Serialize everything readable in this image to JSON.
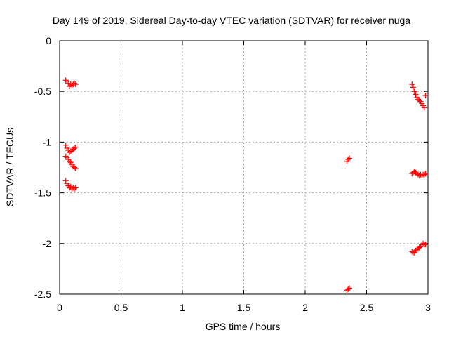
{
  "chart_data": {
    "type": "scatter",
    "title": "Day 149 of 2019, Sidereal Day-to-day VTEC variation (SDTVAR) for receiver nuga",
    "xlabel": "GPS time / hours",
    "ylabel": "SDTVAR / TECUs",
    "xlim": [
      0,
      3
    ],
    "ylim": [
      -2.5,
      0
    ],
    "xticks": [
      0,
      0.5,
      1,
      1.5,
      2,
      2.5,
      3
    ],
    "xtick_labels": [
      "0",
      "0.5",
      "1",
      "1.5",
      "2",
      "2.5",
      "3"
    ],
    "yticks": [
      0,
      -0.5,
      -1,
      -1.5,
      -2,
      -2.5
    ],
    "ytick_labels": [
      "0",
      "-0.5",
      "-1",
      "-1.5",
      "-2",
      "-2.5"
    ],
    "grid": true,
    "marker": "+",
    "color": "#ff0000",
    "series": [
      {
        "x": [
          0.05,
          0.06,
          0.07,
          0.08,
          0.09,
          0.1,
          0.11,
          0.12,
          0.13,
          0.05,
          0.06,
          0.07,
          0.08,
          0.09,
          0.1,
          0.11,
          0.12,
          0.13,
          0.05,
          0.06,
          0.07,
          0.08,
          0.09,
          0.1,
          0.11,
          0.12,
          0.13,
          0.05,
          0.06,
          0.07,
          0.08,
          0.09,
          0.1,
          0.11,
          0.12,
          0.13,
          2.34,
          2.35,
          2.36,
          2.34,
          2.35,
          2.36,
          2.87,
          2.88,
          2.89,
          2.9,
          2.91,
          2.92,
          2.93,
          2.94,
          2.95,
          2.96,
          2.97,
          2.98,
          2.87,
          2.88,
          2.89,
          2.9,
          2.91,
          2.92,
          2.93,
          2.94,
          2.95,
          2.96,
          2.97,
          2.98,
          2.87,
          2.88,
          2.89,
          2.9,
          2.91,
          2.92,
          2.93,
          2.94,
          2.95,
          2.96,
          2.97,
          2.98
        ],
        "y": [
          -0.39,
          -0.4,
          -0.42,
          -0.45,
          -0.43,
          -0.44,
          -0.43,
          -0.42,
          -0.43,
          -1.03,
          -1.06,
          -1.08,
          -1.1,
          -1.09,
          -1.08,
          -1.07,
          -1.06,
          -1.05,
          -1.14,
          -1.15,
          -1.17,
          -1.19,
          -1.2,
          -1.22,
          -1.24,
          -1.25,
          -1.26,
          -1.38,
          -1.41,
          -1.43,
          -1.45,
          -1.44,
          -1.46,
          -1.45,
          -1.46,
          -1.45,
          -1.19,
          -1.17,
          -1.16,
          -2.46,
          -2.45,
          -2.44,
          -0.43,
          -0.46,
          -0.5,
          -0.53,
          -0.56,
          -0.58,
          -0.59,
          -0.6,
          -0.62,
          -0.64,
          -0.66,
          -0.54,
          -1.31,
          -1.3,
          -1.29,
          -1.3,
          -1.31,
          -1.32,
          -1.33,
          -1.32,
          -1.33,
          -1.32,
          -1.32,
          -1.31,
          -2.08,
          -2.09,
          -2.09,
          -2.07,
          -2.06,
          -2.05,
          -2.04,
          -2.03,
          -2.01,
          -2.0,
          -2.01,
          -2.01
        ]
      }
    ]
  }
}
